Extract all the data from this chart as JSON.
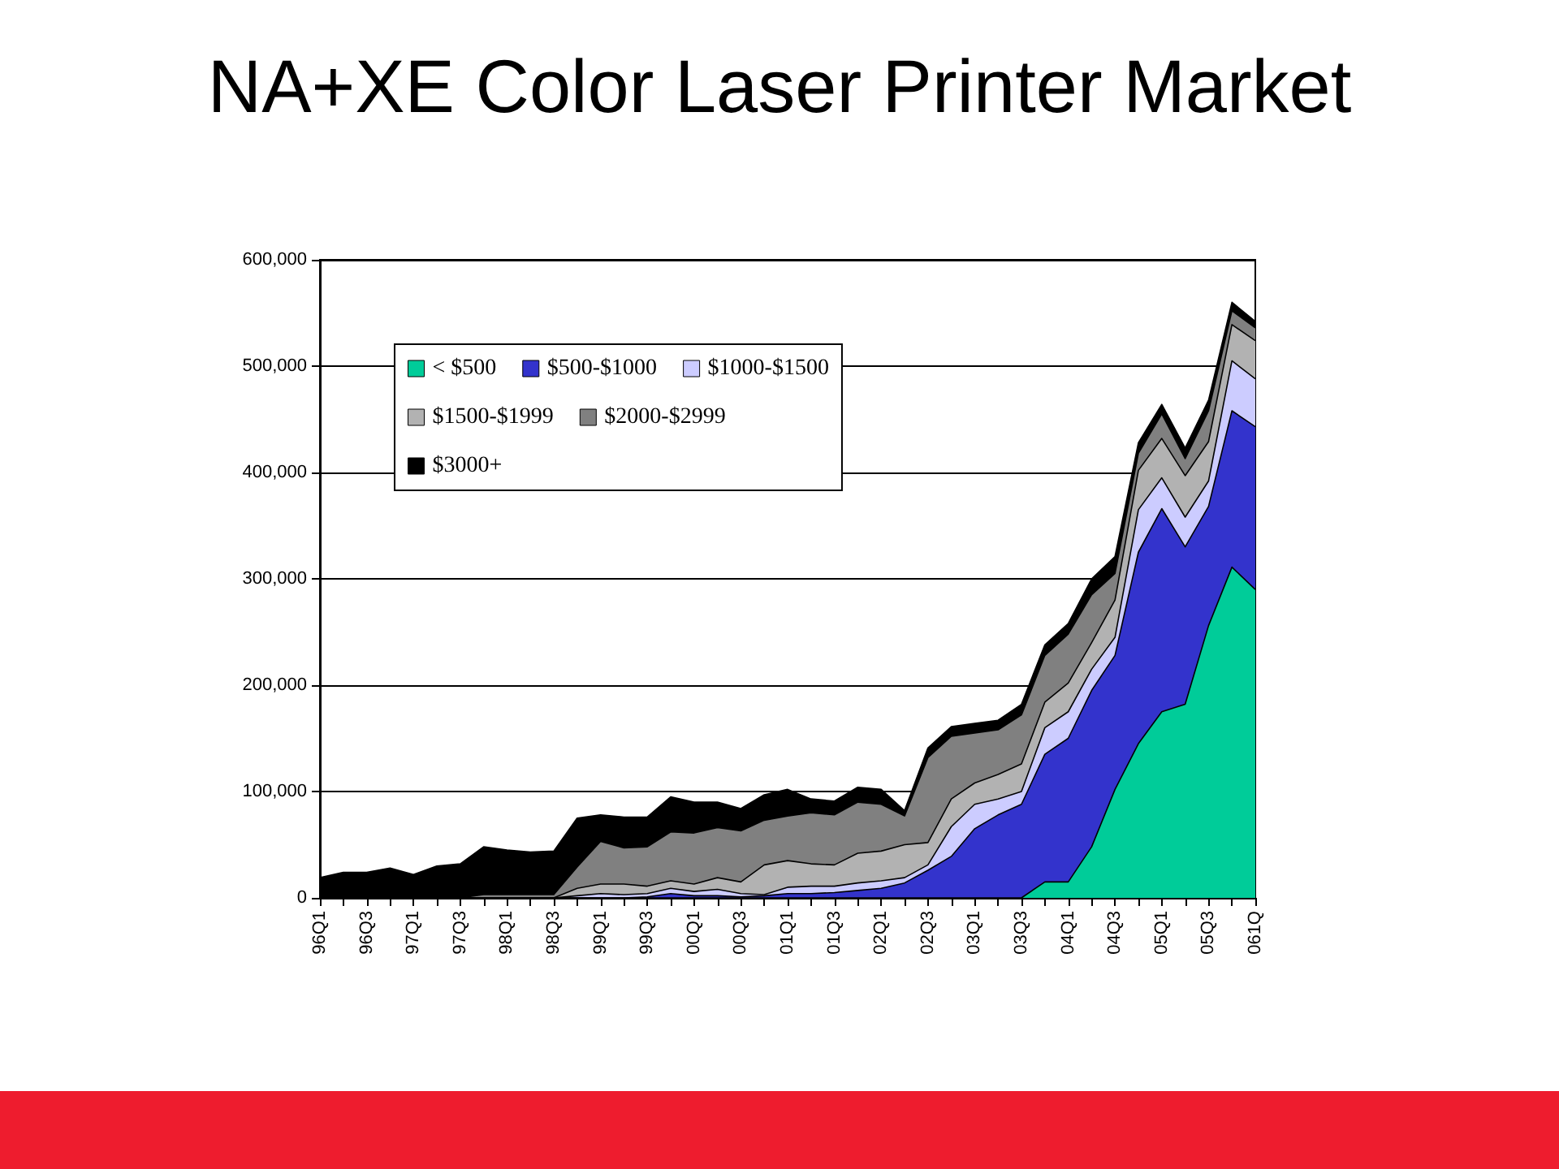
{
  "chart_data": {
    "type": "area",
    "title": "NA+XE Color Laser Printer Market",
    "stacked": true,
    "grid": "y",
    "legend": "top left",
    "categories": [
      "96Q1",
      null,
      "96Q3",
      null,
      "97Q1",
      null,
      "97Q3",
      null,
      "98Q1",
      null,
      "98Q3",
      null,
      "99Q1",
      null,
      "99Q3",
      null,
      "00Q1",
      null,
      "00Q3",
      null,
      "01Q1",
      null,
      "01Q3",
      null,
      "02Q1",
      null,
      "02Q3",
      null,
      "03Q1",
      null,
      "03Q3",
      null,
      "04Q1",
      null,
      "04Q3",
      null,
      "05Q1",
      null,
      "05Q3",
      null,
      "061Q"
    ],
    "ylim": [
      0,
      600000
    ],
    "yticks": [
      0,
      {
        "value": 100000,
        "label": "100,000"
      },
      {
        "value": 200000,
        "label": "200,000"
      },
      {
        "value": 300000,
        "label": "300,000"
      },
      {
        "value": 400000,
        "label": "400,000"
      },
      {
        "value": 500000,
        "label": "500,000"
      },
      {
        "value": 600000,
        "label": "600,000"
      }
    ],
    "series": [
      {
        "name": "< $500",
        "color": "#00cc99",
        "values": [
          0,
          0,
          0,
          0,
          0,
          0,
          0,
          0,
          0,
          0,
          0,
          0,
          0,
          0,
          0,
          0,
          0,
          0,
          0,
          0,
          0,
          0,
          0,
          0,
          0,
          0,
          0,
          0,
          0,
          0,
          0,
          15000,
          15000,
          48000,
          102000,
          145000,
          175000,
          182000,
          256000,
          311000,
          290000
        ]
      },
      {
        "name": "$500-$1000",
        "color": "#3333cc",
        "values": [
          0,
          0,
          0,
          0,
          0,
          0,
          0,
          0,
          0,
          0,
          0,
          0,
          0,
          0,
          1000,
          4000,
          2000,
          2000,
          1000,
          2000,
          4000,
          4000,
          5000,
          7000,
          9000,
          14000,
          26000,
          39000,
          65000,
          78000,
          88000,
          120000,
          135000,
          147000,
          126000,
          180000,
          191000,
          148000,
          112000,
          147000,
          153000
        ]
      },
      {
        "name": "$1000-$1500",
        "color": "#ccccff",
        "values": [
          0,
          0,
          0,
          0,
          0,
          0,
          0,
          0,
          0,
          0,
          0,
          2000,
          4000,
          3000,
          3000,
          5000,
          4000,
          6000,
          3000,
          1000,
          6000,
          7000,
          6000,
          7000,
          7000,
          5000,
          5000,
          28000,
          23000,
          15000,
          12000,
          25000,
          25000,
          20000,
          17000,
          40000,
          29000,
          28000,
          24000,
          47000,
          45000
        ]
      },
      {
        "name": "$1500-$1999",
        "color": "#b2b2b2",
        "values": [
          0,
          0,
          0,
          0,
          0,
          0,
          0,
          0,
          0,
          0,
          0,
          7000,
          9000,
          10000,
          7000,
          7000,
          7000,
          11000,
          11000,
          28000,
          25000,
          21000,
          20000,
          28000,
          28000,
          31000,
          21000,
          26000,
          20000,
          23000,
          26000,
          24000,
          27000,
          25000,
          35000,
          37000,
          37000,
          39000,
          37000,
          34000,
          36000
        ]
      },
      {
        "name": "$2000-$2999",
        "color": "#808080",
        "values": [
          0,
          0,
          0,
          0,
          0,
          0,
          0,
          3000,
          3000,
          3000,
          3000,
          20000,
          40000,
          34000,
          37000,
          46000,
          48000,
          47000,
          48000,
          42000,
          42000,
          48000,
          47000,
          48000,
          44000,
          27000,
          80000,
          59000,
          47000,
          42000,
          46000,
          44000,
          46000,
          45000,
          25000,
          16000,
          23000,
          16000,
          29000,
          13000,
          12000
        ]
      },
      {
        "name": "$3000+",
        "color": "#000000",
        "values": [
          19000,
          24000,
          24000,
          28000,
          22000,
          30000,
          32000,
          45000,
          42000,
          40000,
          41000,
          46000,
          25000,
          29000,
          28000,
          33000,
          29000,
          24000,
          21000,
          24000,
          25000,
          13000,
          13000,
          14000,
          14000,
          5000,
          9000,
          9000,
          9000,
          9000,
          10000,
          10000,
          10000,
          15000,
          16000,
          10000,
          9000,
          10000,
          10000,
          8000,
          6000
        ]
      }
    ]
  }
}
